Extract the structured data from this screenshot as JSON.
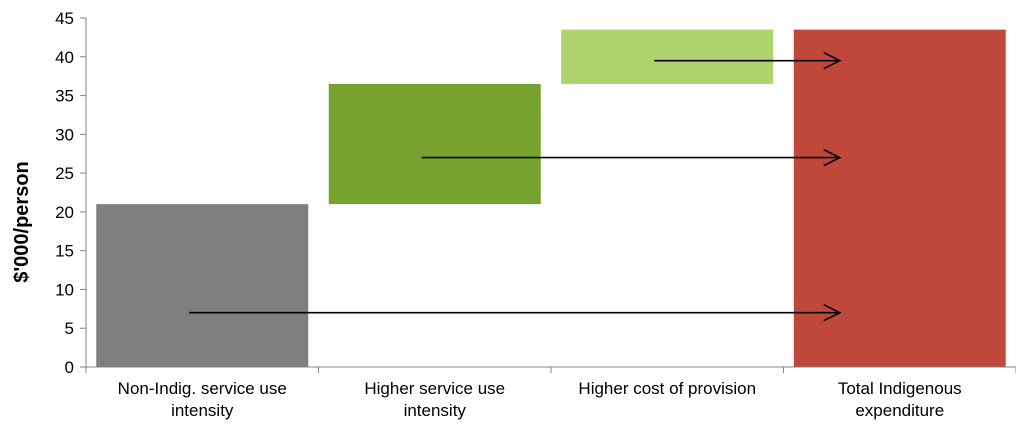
{
  "chart_data": {
    "type": "bar",
    "subtype": "waterfall",
    "title": "",
    "xlabel": "",
    "ylabel": "$'000/person",
    "ylim": [
      0,
      45
    ],
    "yticks": [
      0,
      5,
      10,
      15,
      20,
      25,
      30,
      35,
      40,
      45
    ],
    "grid": false,
    "legend": "none",
    "categories": [
      [
        "Non-Indig. service use",
        "intensity"
      ],
      [
        "Higher service use",
        "intensity"
      ],
      [
        "Higher cost of provision"
      ],
      [
        "Total Indigenous",
        "expenditure"
      ]
    ],
    "bars": [
      {
        "base": 0,
        "top": 21,
        "value": 21,
        "color": "#7f7f7f"
      },
      {
        "base": 21,
        "top": 36.5,
        "value": 15.5,
        "color": "#77a22f"
      },
      {
        "base": 36.5,
        "top": 43.5,
        "value": 7,
        "color": "#add46d"
      },
      {
        "base": 0,
        "top": 43.5,
        "value": 43.5,
        "color": "#c0483a"
      }
    ],
    "arrows": [
      {
        "from_category": 0,
        "y": 7
      },
      {
        "from_category": 1,
        "y": 27
      },
      {
        "from_category": 2,
        "y": 39.5
      }
    ]
  }
}
